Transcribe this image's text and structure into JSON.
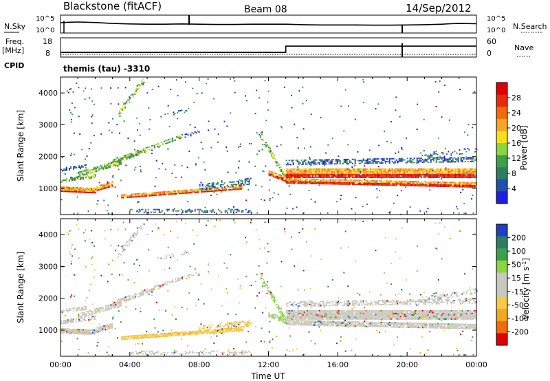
{
  "header": {
    "station": "Blackstone (fitACF)",
    "beam": "Beam 08",
    "date": "14/Sep/2012"
  },
  "side_labels": {
    "nsky": "N.Sky",
    "nsearch": "N.Search",
    "freq_l1": "Freq.",
    "freq_l2": "[MHz]",
    "nave": "Nave",
    "cpid": "CPID",
    "program": "themis (tau) -3310"
  },
  "colors": {
    "power_scale": [
      "#1f1fe0",
      "#1f4fb0",
      "#2e7d62",
      "#3aa14a",
      "#8bd63e",
      "#f4e11b",
      "#f5a623",
      "#f26a0c",
      "#e82b0a",
      "#e00000"
    ],
    "velocity_scale": [
      "#e00000",
      "#f26a0c",
      "#f5a623",
      "#f7c948",
      "#c8c8c0",
      "#c8c8c0",
      "#8bd63e",
      "#3aa14a",
      "#2e7d62",
      "#1f3fc0"
    ]
  },
  "chart_data": [
    {
      "type": "line",
      "name": "noise-panel",
      "left_ticks": [
        "10^5",
        "10^0"
      ],
      "right_ticks": [
        "10^5",
        "10^0"
      ],
      "xlim": [
        0,
        24
      ],
      "series": [
        {
          "name": "N.Sky",
          "x": [
            0,
            0.5,
            1,
            2,
            2.5,
            3,
            4,
            5,
            6,
            7,
            8,
            9,
            10,
            11,
            12,
            13,
            14,
            15,
            16,
            17,
            18,
            19,
            20,
            21,
            22,
            22.5,
            23,
            24
          ],
          "y": [
            3.6,
            3.8,
            3.9,
            3.7,
            3.5,
            3.3,
            3.1,
            3.0,
            3.0,
            3.1,
            3.0,
            2.9,
            2.9,
            3.0,
            3.0,
            3.0,
            2.8,
            2.7,
            2.7,
            2.7,
            2.6,
            2.6,
            2.7,
            2.8,
            3.0,
            3.2,
            3.3,
            3.2
          ]
        }
      ]
    },
    {
      "type": "line",
      "name": "frequency-panel",
      "left_ticks": [
        "18",
        "8"
      ],
      "right_ticks": [
        "60",
        "0"
      ],
      "xlim": [
        0,
        24
      ],
      "series": [
        {
          "name": "Freq.",
          "x": [
            0,
            13,
            13,
            24
          ],
          "y": [
            10.8,
            10.8,
            16.2,
            16.2
          ]
        }
      ]
    },
    {
      "type": "heatmap",
      "name": "power-panel",
      "ylabel": "Slant Range [km]",
      "xlim": [
        0,
        24
      ],
      "ylim": [
        180,
        4500
      ],
      "yticks": [
        1000,
        2000,
        3000,
        4000
      ],
      "colorbar_label": "Power [dB]",
      "colorbar_ticks": [
        "28",
        "24",
        "20",
        "16",
        "12",
        "8",
        "4"
      ]
    },
    {
      "type": "heatmap",
      "name": "velocity-panel",
      "ylabel": "Slant Range [km]",
      "xlabel": "Time UT",
      "xlim": [
        0,
        24
      ],
      "ylim": [
        180,
        4500
      ],
      "xticks": [
        "00:00",
        "04:00",
        "08:00",
        "12:00",
        "16:00",
        "20:00",
        "00:00"
      ],
      "yticks": [
        1000,
        2000,
        3000,
        4000
      ],
      "colorbar_label": "Velocity [m s-1]",
      "colorbar_ticks": [
        "200",
        "100",
        "50",
        "15",
        "-15",
        "-50",
        "-100",
        "-200"
      ]
    }
  ]
}
